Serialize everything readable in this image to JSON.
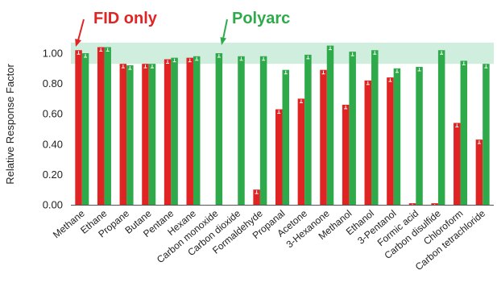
{
  "chart_data": {
    "type": "bar",
    "title": "",
    "xlabel": "",
    "ylabel": "Relative Response Factor",
    "ylim": [
      0,
      1.1
    ],
    "yticks": [
      "0.00",
      "0.20",
      "0.40",
      "0.60",
      "0.80",
      "1.00"
    ],
    "ytick_values": [
      0,
      0.2,
      0.4,
      0.6,
      0.8,
      1.0
    ],
    "highlight_band": [
      0.93,
      1.07
    ],
    "grid": false,
    "legend": "annotations-top",
    "categories": [
      "Methane",
      "Ethane",
      "Propane",
      "Butane",
      "Pentane",
      "Hexane",
      "Carbon monoxide",
      "Carbon dioxide",
      "Formaldehyde",
      "Propanal",
      "Acetone",
      "3-Hexanone",
      "Methanol",
      "Ethanol",
      "3-Pentanol",
      "Formic acid",
      "Carbon disulfide",
      "Chloroform",
      "Carbon tetrachloride"
    ],
    "series": [
      {
        "name": "FID only",
        "values": [
          1.02,
          1.04,
          0.93,
          0.93,
          0.96,
          0.97,
          0,
          0,
          0.1,
          0.63,
          0.7,
          0.89,
          0.66,
          0.82,
          0.84,
          0.01,
          0.01,
          0.54,
          0.43
        ]
      },
      {
        "name": "Polyarc",
        "values": [
          1.0,
          1.04,
          0.92,
          0.93,
          0.97,
          0.98,
          1.0,
          0.98,
          0.98,
          0.89,
          0.99,
          1.05,
          1.01,
          1.02,
          0.9,
          0.91,
          1.02,
          0.95,
          0.93
        ]
      }
    ],
    "colors": {
      "fid": "#e02424",
      "polyarc": "#2eaa4a",
      "band": "#cfeedd",
      "error": "#ffffff"
    }
  }
}
